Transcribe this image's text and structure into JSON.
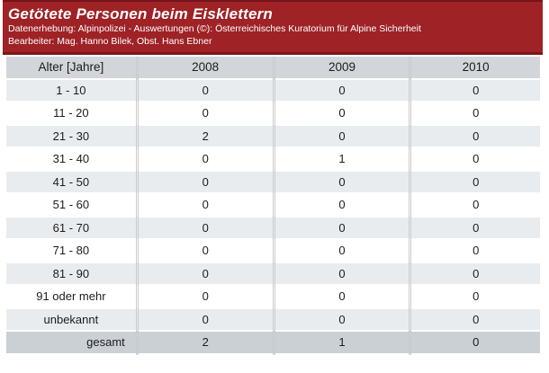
{
  "banner": {
    "title": "Getötete Personen beim Eisklettern",
    "source_line": "Datenerhebung: Alpinpolizei - Auswertungen (©): Österreichisches Kuratorium für Alpine Sicherheit",
    "editor_line": "Bearbeiter: Mag. Hanno Bilek, Obst. Hans Ebner"
  },
  "colors": {
    "banner_red": "#9e2226",
    "banner_red_dark_edge": "#7c1518",
    "header_row_gray": "#d2d6da",
    "alt_row_gray": "#e9ecef",
    "total_row_gray": "#cbd0d5",
    "text": "#1c1c1c"
  },
  "table": {
    "columns": [
      "Alter [Jahre]",
      "2008",
      "2009",
      "2010"
    ],
    "rows": [
      {
        "label": "1 - 10",
        "values": [
          "0",
          "0",
          "0"
        ]
      },
      {
        "label": "11 - 20",
        "values": [
          "0",
          "0",
          "0"
        ]
      },
      {
        "label": "21 - 30",
        "values": [
          "2",
          "0",
          "0"
        ]
      },
      {
        "label": "31 - 40",
        "values": [
          "0",
          "1",
          "0"
        ]
      },
      {
        "label": "41 - 50",
        "values": [
          "0",
          "0",
          "0"
        ]
      },
      {
        "label": "51 - 60",
        "values": [
          "0",
          "0",
          "0"
        ]
      },
      {
        "label": "61 - 70",
        "values": [
          "0",
          "0",
          "0"
        ]
      },
      {
        "label": "71 - 80",
        "values": [
          "0",
          "0",
          "0"
        ]
      },
      {
        "label": "81 - 90",
        "values": [
          "0",
          "0",
          "0"
        ]
      },
      {
        "label": "91 oder mehr",
        "values": [
          "0",
          "0",
          "0"
        ]
      },
      {
        "label": "unbekannt",
        "values": [
          "0",
          "0",
          "0"
        ]
      }
    ],
    "total_row": {
      "label": "gesamt",
      "values": [
        "2",
        "1",
        "0"
      ]
    }
  },
  "chart_data": {
    "type": "table",
    "title": "Getötete Personen beim Eisklettern",
    "categories": [
      "1 - 10",
      "11 - 20",
      "21 - 30",
      "31 - 40",
      "41 - 50",
      "51 - 60",
      "61 - 70",
      "71 - 80",
      "81 - 90",
      "91 oder mehr",
      "unbekannt"
    ],
    "xlabel": "Alter [Jahre]",
    "series": [
      {
        "name": "2008",
        "values": [
          0,
          0,
          2,
          0,
          0,
          0,
          0,
          0,
          0,
          0,
          0
        ],
        "total": 2
      },
      {
        "name": "2009",
        "values": [
          0,
          0,
          0,
          1,
          0,
          0,
          0,
          0,
          0,
          0,
          0
        ],
        "total": 1
      },
      {
        "name": "2010",
        "values": [
          0,
          0,
          0,
          0,
          0,
          0,
          0,
          0,
          0,
          0,
          0
        ],
        "total": 0
      }
    ],
    "totals_row_label": "gesamt"
  }
}
